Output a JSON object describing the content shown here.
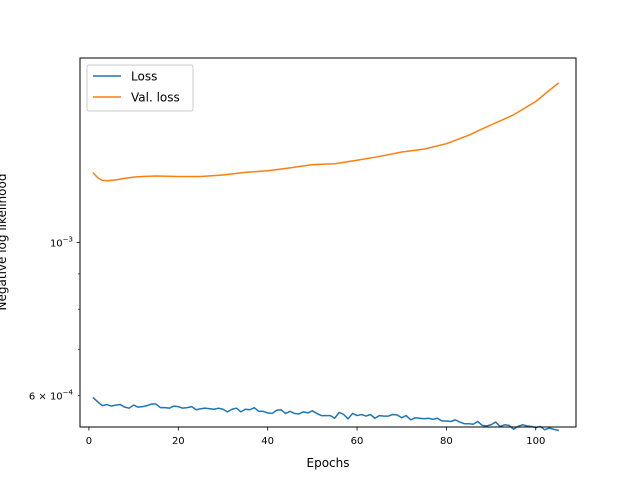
{
  "chart_data": {
    "type": "line",
    "title": "",
    "xlabel": "Epochs",
    "ylabel": "Negative log likelihood",
    "yscale": "log",
    "xlim": [
      -2,
      109
    ],
    "ylim": [
      0.00054,
      0.00185
    ],
    "xticks": [
      {
        "value": 0,
        "label": "0"
      },
      {
        "value": 20,
        "label": "20"
      },
      {
        "value": 40,
        "label": "40"
      },
      {
        "value": 60,
        "label": "60"
      },
      {
        "value": 80,
        "label": "80"
      },
      {
        "value": 100,
        "label": "100"
      }
    ],
    "yticks_major": [
      {
        "value": 0.001,
        "base": "10",
        "exp": "−3"
      }
    ],
    "yticks_minor": [
      {
        "value": 0.0006,
        "coef": "6 × 10",
        "exp": "−4"
      }
    ],
    "yticks_minor_unlabeled": [
      0.0007,
      0.0008,
      0.0009
    ],
    "grid": false,
    "legend_position": "top-left",
    "series": [
      {
        "name": "Loss",
        "color": "#1f77b4",
        "x": [
          1,
          2,
          3,
          4,
          5,
          6,
          7,
          8,
          9,
          10,
          11,
          12,
          13,
          14,
          15,
          16,
          17,
          18,
          19,
          20,
          21,
          22,
          23,
          24,
          25,
          26,
          27,
          28,
          29,
          30,
          31,
          32,
          33,
          34,
          35,
          36,
          37,
          38,
          39,
          40,
          41,
          42,
          43,
          44,
          45,
          46,
          47,
          48,
          49,
          50,
          51,
          52,
          53,
          54,
          55,
          56,
          57,
          58,
          59,
          60,
          61,
          62,
          63,
          64,
          65,
          66,
          67,
          68,
          69,
          70,
          71,
          72,
          73,
          74,
          75,
          76,
          77,
          78,
          79,
          80,
          81,
          82,
          83,
          84,
          85,
          86,
          87,
          88,
          89,
          90,
          91,
          92,
          93,
          94,
          95,
          96,
          97,
          98,
          99,
          100,
          101,
          102,
          103,
          104,
          105
        ],
        "y": [
          0.000595,
          0.000587,
          0.00058,
          0.000582,
          0.000579,
          0.000581,
          0.000582,
          0.000577,
          0.000575,
          0.000581,
          0.000577,
          0.000578,
          0.00058,
          0.000583,
          0.000583,
          0.000576,
          0.000576,
          0.000575,
          0.000579,
          0.000578,
          0.000575,
          0.000576,
          0.000578,
          0.000572,
          0.000574,
          0.000575,
          0.000574,
          0.000573,
          0.000575,
          0.000573,
          0.000568,
          0.000573,
          0.000575,
          0.000568,
          0.000573,
          0.000572,
          0.000576,
          0.000569,
          0.000569,
          0.000566,
          0.000565,
          0.000571,
          0.000572,
          0.000565,
          0.000569,
          0.000565,
          0.000564,
          0.000568,
          0.000566,
          0.00057,
          0.000565,
          0.000561,
          0.000561,
          0.000561,
          0.000556,
          0.000567,
          0.000563,
          0.000555,
          0.000565,
          0.000561,
          0.000563,
          0.00056,
          0.000563,
          0.000556,
          0.000561,
          0.00056,
          0.00056,
          0.000563,
          0.000562,
          0.000557,
          0.000561,
          0.000553,
          0.000557,
          0.000556,
          0.000555,
          0.000556,
          0.000554,
          0.000556,
          0.000551,
          0.000551,
          0.00055,
          0.000553,
          0.000549,
          0.000546,
          0.000546,
          0.000545,
          0.00055,
          0.000543,
          0.000542,
          0.000544,
          0.000549,
          0.000541,
          0.000544,
          0.000543,
          0.000536,
          0.000541,
          0.000544,
          0.000542,
          0.000541,
          0.000539,
          0.000541,
          0.000535,
          0.000538,
          0.000536,
          0.000534
        ]
      },
      {
        "name": "Val. loss",
        "color": "#ff7f0e",
        "x": [
          1,
          2,
          3,
          4,
          5,
          6,
          8,
          10,
          12,
          15,
          20,
          25,
          30,
          35,
          40,
          45,
          50,
          55,
          60,
          65,
          70,
          75,
          80,
          85,
          90,
          95,
          100,
          103,
          105
        ],
        "y": [
          0.00126,
          0.00124,
          0.00123,
          0.001228,
          0.00123,
          0.001232,
          0.001238,
          0.001243,
          0.001246,
          0.001248,
          0.001246,
          0.001246,
          0.001252,
          0.001263,
          0.00127,
          0.001282,
          0.001296,
          0.0013,
          0.001315,
          0.001332,
          0.001352,
          0.001365,
          0.00139,
          0.00143,
          0.00148,
          0.00153,
          0.0016,
          0.00166,
          0.0017
        ]
      }
    ]
  }
}
